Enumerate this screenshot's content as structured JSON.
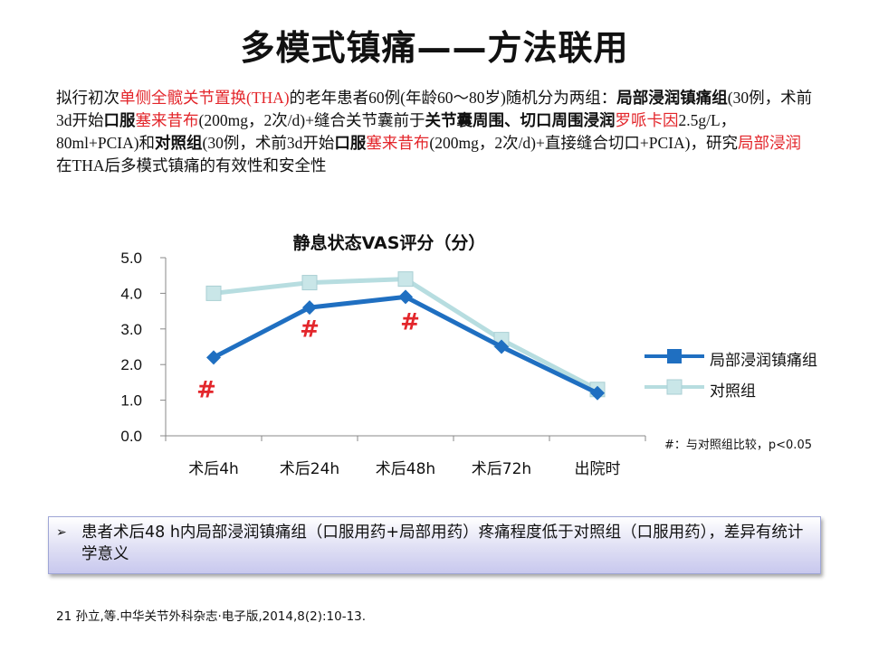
{
  "slide": {
    "title": "多模式镇痛——方法联用",
    "intro": [
      {
        "t": "拟行初次",
        "s": ""
      },
      {
        "t": "单侧全髋关节置换(THA)",
        "s": "red"
      },
      {
        "t": "的老年患者60例(年龄60～80岁)随机分为两组：",
        "s": ""
      },
      {
        "t": "局部浸润镇痛组",
        "s": "b"
      },
      {
        "t": "(30例，术前3d开始",
        "s": ""
      },
      {
        "t": "口服",
        "s": "b"
      },
      {
        "t": "塞来昔布",
        "s": "red"
      },
      {
        "t": "(200mg，2次/d)+缝合关节囊前于",
        "s": ""
      },
      {
        "t": "关节囊周围、切口周围浸润",
        "s": "b"
      },
      {
        "t": "罗哌卡因",
        "s": "red"
      },
      {
        "t": "2.5g/L，80ml+PCIA)和",
        "s": ""
      },
      {
        "t": "对照组",
        "s": "b"
      },
      {
        "t": "(30例，术前3d开始",
        "s": ""
      },
      {
        "t": "口服",
        "s": "b"
      },
      {
        "t": "塞来昔布",
        "s": "red"
      },
      {
        "t": "(200mg，2次/d)+直接缝合切口+PCIA)，研究",
        "s": ""
      },
      {
        "t": "局部浸润",
        "s": "red"
      },
      {
        "t": "在THA后多模式镇痛的有效性和安全性",
        "s": ""
      }
    ],
    "note": "#：与对照组比较，p<0.05",
    "callout_marker": "➢",
    "callout": "患者术后48 h内局部浸润镇痛组（口服用药+局部用药）疼痛程度低于对照组（口服用药），差异有统计学意义",
    "reference": "21 孙立,等.中华关节外科杂志·电子版,2014,8(2):10-13."
  },
  "chart_data": {
    "type": "line",
    "title": "静息状态VAS评分（分）",
    "categories": [
      "术后4h",
      "术后24h",
      "术后48h",
      "术后72h",
      "出院时"
    ],
    "ylim": [
      0,
      5
    ],
    "yticks": [
      "0.0",
      "1.0",
      "2.0",
      "3.0",
      "4.0",
      "5.0"
    ],
    "grid": false,
    "legend_position": "right",
    "series": [
      {
        "name": "局部浸润镇痛组",
        "values": [
          2.2,
          3.6,
          3.9,
          2.5,
          1.2
        ],
        "color": "#1f6fc1",
        "marker": "diamond"
      },
      {
        "name": "对照组",
        "values": [
          4.0,
          4.3,
          4.4,
          2.7,
          1.3
        ],
        "color": "#b7dde0",
        "marker": "square"
      }
    ],
    "annotations": [
      {
        "category": "术后4h",
        "text": "#"
      },
      {
        "category": "术后24h",
        "text": "#"
      },
      {
        "category": "术后48h",
        "text": "#"
      }
    ],
    "annotation_color": "#e3262b"
  }
}
